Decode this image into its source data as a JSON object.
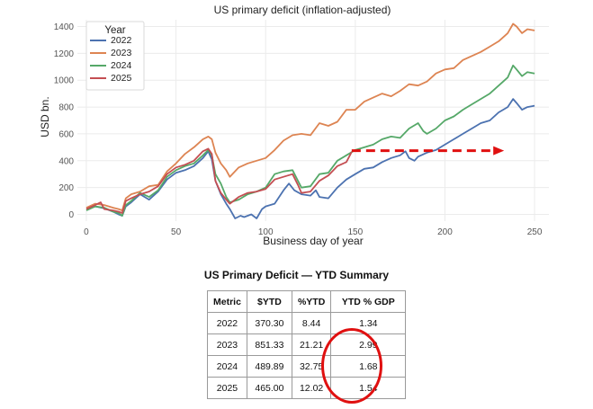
{
  "chart_data": {
    "type": "line",
    "title": "US primary deficit (inflation-adjusted)",
    "xlabel": "Business day of year",
    "ylabel": "USD bn.",
    "xlim": [
      -5,
      258
    ],
    "ylim": [
      -50,
      1450
    ],
    "xticks": [
      0,
      50,
      100,
      150,
      200,
      250
    ],
    "yticks": [
      0,
      200,
      400,
      600,
      800,
      1000,
      1200,
      1400
    ],
    "grid": true,
    "legend": {
      "title": "Year",
      "placement": "top-left"
    },
    "series": [
      {
        "name": "2022",
        "color": "#4c72b0",
        "points": [
          [
            0,
            40
          ],
          [
            5,
            60
          ],
          [
            10,
            45
          ],
          [
            15,
            20
          ],
          [
            18,
            0
          ],
          [
            20,
            -10
          ],
          [
            22,
            60
          ],
          [
            25,
            90
          ],
          [
            30,
            150
          ],
          [
            35,
            110
          ],
          [
            40,
            170
          ],
          [
            45,
            260
          ],
          [
            50,
            310
          ],
          [
            55,
            330
          ],
          [
            60,
            360
          ],
          [
            65,
            420
          ],
          [
            68,
            470
          ],
          [
            70,
            410
          ],
          [
            72,
            250
          ],
          [
            75,
            150
          ],
          [
            78,
            80
          ],
          [
            80,
            40
          ],
          [
            83,
            -30
          ],
          [
            86,
            -10
          ],
          [
            88,
            -20
          ],
          [
            92,
            0
          ],
          [
            95,
            -30
          ],
          [
            98,
            40
          ],
          [
            100,
            60
          ],
          [
            105,
            80
          ],
          [
            110,
            180
          ],
          [
            113,
            230
          ],
          [
            116,
            180
          ],
          [
            120,
            150
          ],
          [
            125,
            140
          ],
          [
            128,
            180
          ],
          [
            130,
            130
          ],
          [
            135,
            120
          ],
          [
            140,
            200
          ],
          [
            145,
            260
          ],
          [
            150,
            300
          ],
          [
            155,
            340
          ],
          [
            160,
            350
          ],
          [
            165,
            390
          ],
          [
            170,
            420
          ],
          [
            175,
            440
          ],
          [
            178,
            470
          ],
          [
            180,
            420
          ],
          [
            183,
            400
          ],
          [
            185,
            430
          ],
          [
            190,
            460
          ],
          [
            195,
            480
          ],
          [
            200,
            520
          ],
          [
            205,
            560
          ],
          [
            210,
            600
          ],
          [
            215,
            640
          ],
          [
            220,
            680
          ],
          [
            225,
            700
          ],
          [
            230,
            760
          ],
          [
            235,
            800
          ],
          [
            238,
            860
          ],
          [
            240,
            830
          ],
          [
            243,
            780
          ],
          [
            246,
            800
          ],
          [
            250,
            810
          ]
        ]
      },
      {
        "name": "2023",
        "color": "#dd8452",
        "points": [
          [
            0,
            50
          ],
          [
            5,
            80
          ],
          [
            10,
            70
          ],
          [
            15,
            50
          ],
          [
            18,
            40
          ],
          [
            20,
            30
          ],
          [
            22,
            120
          ],
          [
            25,
            150
          ],
          [
            30,
            170
          ],
          [
            35,
            210
          ],
          [
            40,
            220
          ],
          [
            45,
            320
          ],
          [
            50,
            380
          ],
          [
            55,
            450
          ],
          [
            60,
            500
          ],
          [
            65,
            560
          ],
          [
            68,
            580
          ],
          [
            70,
            560
          ],
          [
            72,
            460
          ],
          [
            75,
            380
          ],
          [
            78,
            330
          ],
          [
            80,
            280
          ],
          [
            85,
            350
          ],
          [
            90,
            380
          ],
          [
            95,
            400
          ],
          [
            100,
            420
          ],
          [
            105,
            480
          ],
          [
            110,
            550
          ],
          [
            115,
            590
          ],
          [
            120,
            600
          ],
          [
            125,
            590
          ],
          [
            130,
            680
          ],
          [
            135,
            660
          ],
          [
            140,
            690
          ],
          [
            145,
            780
          ],
          [
            150,
            780
          ],
          [
            155,
            840
          ],
          [
            160,
            870
          ],
          [
            165,
            900
          ],
          [
            170,
            880
          ],
          [
            175,
            920
          ],
          [
            180,
            970
          ],
          [
            185,
            960
          ],
          [
            190,
            990
          ],
          [
            195,
            1050
          ],
          [
            200,
            1080
          ],
          [
            205,
            1090
          ],
          [
            210,
            1150
          ],
          [
            215,
            1180
          ],
          [
            220,
            1210
          ],
          [
            225,
            1250
          ],
          [
            230,
            1290
          ],
          [
            235,
            1350
          ],
          [
            238,
            1420
          ],
          [
            240,
            1400
          ],
          [
            243,
            1350
          ],
          [
            246,
            1380
          ],
          [
            250,
            1370
          ]
        ]
      },
      {
        "name": "2024",
        "color": "#55a868",
        "points": [
          [
            0,
            30
          ],
          [
            5,
            60
          ],
          [
            10,
            50
          ],
          [
            15,
            20
          ],
          [
            18,
            10
          ],
          [
            20,
            -10
          ],
          [
            22,
            70
          ],
          [
            25,
            100
          ],
          [
            30,
            160
          ],
          [
            35,
            130
          ],
          [
            40,
            180
          ],
          [
            45,
            280
          ],
          [
            50,
            330
          ],
          [
            55,
            360
          ],
          [
            60,
            380
          ],
          [
            65,
            440
          ],
          [
            68,
            480
          ],
          [
            70,
            440
          ],
          [
            72,
            300
          ],
          [
            75,
            230
          ],
          [
            78,
            130
          ],
          [
            80,
            90
          ],
          [
            85,
            110
          ],
          [
            90,
            150
          ],
          [
            95,
            170
          ],
          [
            100,
            200
          ],
          [
            105,
            300
          ],
          [
            110,
            320
          ],
          [
            115,
            330
          ],
          [
            118,
            250
          ],
          [
            120,
            200
          ],
          [
            125,
            210
          ],
          [
            130,
            300
          ],
          [
            135,
            310
          ],
          [
            140,
            400
          ],
          [
            145,
            440
          ],
          [
            150,
            480
          ],
          [
            155,
            500
          ],
          [
            160,
            520
          ],
          [
            165,
            560
          ],
          [
            170,
            580
          ],
          [
            175,
            570
          ],
          [
            180,
            640
          ],
          [
            185,
            680
          ],
          [
            188,
            620
          ],
          [
            190,
            600
          ],
          [
            195,
            640
          ],
          [
            200,
            700
          ],
          [
            205,
            730
          ],
          [
            210,
            780
          ],
          [
            215,
            820
          ],
          [
            220,
            860
          ],
          [
            225,
            900
          ],
          [
            230,
            960
          ],
          [
            235,
            1020
          ],
          [
            238,
            1110
          ],
          [
            240,
            1080
          ],
          [
            243,
            1030
          ],
          [
            246,
            1060
          ],
          [
            250,
            1050
          ]
        ]
      },
      {
        "name": "2025",
        "color": "#c44e52",
        "points": [
          [
            0,
            40
          ],
          [
            5,
            70
          ],
          [
            8,
            90
          ],
          [
            10,
            40
          ],
          [
            15,
            30
          ],
          [
            18,
            20
          ],
          [
            20,
            10
          ],
          [
            22,
            100
          ],
          [
            25,
            120
          ],
          [
            30,
            150
          ],
          [
            35,
            170
          ],
          [
            40,
            210
          ],
          [
            45,
            300
          ],
          [
            50,
            350
          ],
          [
            55,
            370
          ],
          [
            60,
            400
          ],
          [
            65,
            470
          ],
          [
            68,
            490
          ],
          [
            70,
            450
          ],
          [
            72,
            250
          ],
          [
            75,
            160
          ],
          [
            78,
            110
          ],
          [
            80,
            80
          ],
          [
            85,
            130
          ],
          [
            90,
            160
          ],
          [
            95,
            170
          ],
          [
            100,
            190
          ],
          [
            105,
            260
          ],
          [
            110,
            280
          ],
          [
            115,
            300
          ],
          [
            118,
            220
          ],
          [
            120,
            160
          ],
          [
            125,
            170
          ],
          [
            130,
            250
          ],
          [
            135,
            290
          ],
          [
            140,
            360
          ],
          [
            145,
            390
          ],
          [
            148,
            465
          ]
        ]
      }
    ],
    "annotation": {
      "type": "arrow",
      "style": "dashed",
      "color": "#e01010",
      "from": [
        148,
        475
      ],
      "to": [
        232,
        475
      ]
    }
  },
  "table": {
    "title": "US Primary Deficit — YTD Summary",
    "headers": [
      "Metric",
      "$YTD",
      "%YTD",
      "YTD % GDP"
    ],
    "rows": [
      [
        "2022",
        "370.30",
        "8.44",
        "1.34"
      ],
      [
        "2023",
        "851.33",
        "21.21",
        "2.99"
      ],
      [
        "2024",
        "489.89",
        "32.75",
        "1.68"
      ],
      [
        "2025",
        "465.00",
        "12.02",
        "1.54"
      ]
    ]
  },
  "highlight_color": "#e01010"
}
